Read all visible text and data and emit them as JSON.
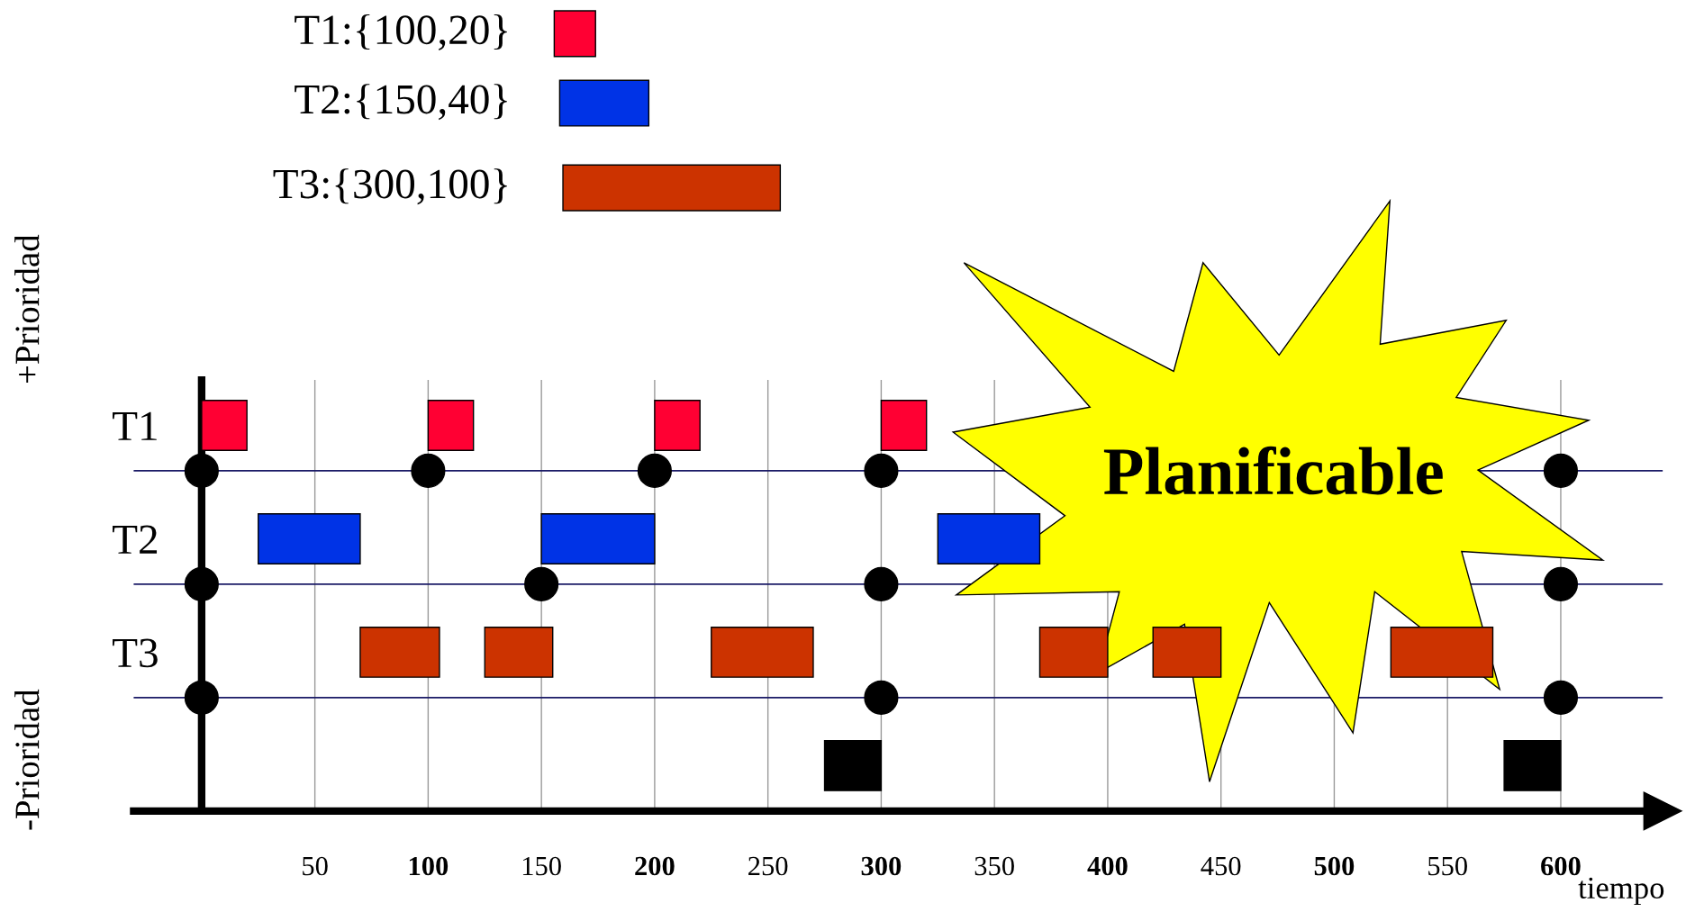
{
  "chart_data": {
    "type": "bar",
    "orientation": "horizontal",
    "xlabel": "tiempo",
    "categories": [
      "T1",
      "T2",
      "T3",
      null
    ],
    "series": [
      {
        "colors": [
          "#ff0033",
          "#0033e6",
          "#cc3300",
          "#000000"
        ],
        "base": [
          0,
          25,
          70,
          275
        ],
        "values": [
          20,
          45,
          35,
          25
        ]
      },
      {
        "colors": [
          "#ff0033",
          "#0033e6",
          "#cc3300",
          "#000000"
        ],
        "base": [
          100,
          150,
          125,
          575
        ],
        "values": [
          20,
          50,
          30,
          25
        ]
      },
      {
        "colors": [
          "#ff0033",
          "#0033e6",
          "#cc3300",
          "#000000"
        ],
        "base": [
          200,
          325,
          225,
          null
        ],
        "values": [
          20,
          45,
          45,
          null
        ]
      },
      {
        "colors": [
          "#ff0033",
          "#0033e6",
          "#cc3300",
          "#000000"
        ],
        "base": [
          300,
          null,
          370,
          null
        ],
        "values": [
          20,
          null,
          30,
          null
        ]
      },
      {
        "colors": [
          "#ff0033",
          "#0033e6",
          "#cc3300",
          "#000000"
        ],
        "base": [
          null,
          null,
          420,
          null
        ],
        "values": [
          null,
          null,
          30,
          null
        ]
      },
      {
        "colors": [
          "#ff0033",
          "#0033e6",
          "#cc3300",
          "#000000"
        ],
        "base": [
          null,
          null,
          525,
          null
        ],
        "values": [
          null,
          null,
          45,
          null
        ]
      },
      {
        "type": "scatter",
        "color": "#000000",
        "values": [
          0,
          0,
          0,
          null
        ]
      },
      {
        "type": "scatter",
        "color": "#000000",
        "values": [
          100,
          150,
          300,
          null
        ]
      },
      {
        "type": "scatter",
        "color": "#000000",
        "values": [
          200,
          300,
          600,
          null
        ]
      },
      {
        "type": "scatter",
        "color": "#000000",
        "values": [
          300,
          600,
          null,
          null
        ]
      },
      {
        "type": "scatter",
        "color": "#000000",
        "values": [
          600,
          null,
          null,
          null
        ]
      }
    ],
    "xlim": [
      -30,
      645
    ],
    "xticks": [
      50,
      {
        "value": 100,
        "label": "100"
      },
      150,
      {
        "value": 200,
        "label": "200"
      },
      250,
      {
        "value": 300,
        "label": "300"
      },
      350,
      {
        "value": 400,
        "label": "400"
      },
      450,
      {
        "value": 500,
        "label": "500"
      },
      550,
      {
        "value": 600,
        "label": "600"
      }
    ],
    "annotations": [
      "T1:{100,20}",
      "T2:{150,40}",
      "T3:{300,100}",
      "+Prioridad",
      "-Prioridad",
      "Planificable"
    ],
    "grid": true
  }
}
